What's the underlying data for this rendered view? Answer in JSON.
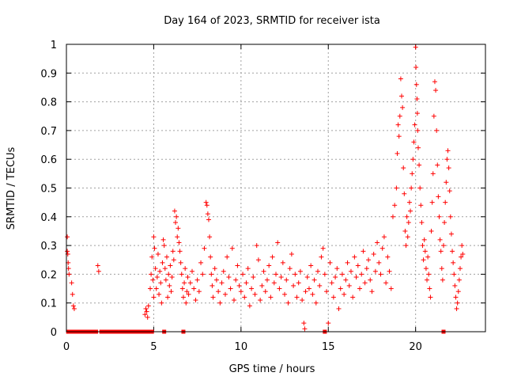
{
  "chart_data": {
    "type": "scatter",
    "title": "Day 164 of 2023, SRMTID for receiver ista",
    "xlabel": "GPS time / hours",
    "ylabel": "SRMTID / TECUs",
    "xlim": [
      0,
      24
    ],
    "ylim": [
      0,
      1
    ],
    "xticks": [
      0,
      5,
      10,
      15,
      20
    ],
    "yticks": [
      0,
      0.1,
      0.2,
      0.3,
      0.4,
      0.5,
      0.6,
      0.7,
      0.8,
      0.9,
      1
    ],
    "xtick_labels": [
      "0",
      "5",
      "10",
      "15",
      "20"
    ],
    "ytick_labels": [
      "0",
      "0.1",
      "0.2",
      "0.3",
      "0.4",
      "0.5",
      "0.6",
      "0.7",
      "0.8",
      "0.9",
      "1"
    ],
    "grid": true,
    "marker": "+",
    "color": "#ff0000",
    "zero_marker": "square",
    "series": [
      {
        "name": "SRMTID",
        "points": [
          [
            0.05,
            0.33
          ],
          [
            0.05,
            0.28
          ],
          [
            0.08,
            0.27
          ],
          [
            0.1,
            0.24
          ],
          [
            0.12,
            0.22
          ],
          [
            0.15,
            0.2
          ],
          [
            0.3,
            0.17
          ],
          [
            0.35,
            0.13
          ],
          [
            0.4,
            0.09
          ],
          [
            0.45,
            0.08
          ],
          [
            1.8,
            0.23
          ],
          [
            1.85,
            0.21
          ],
          [
            4.5,
            0.06
          ],
          [
            4.55,
            0.08
          ],
          [
            4.6,
            0.07
          ],
          [
            4.65,
            0.05
          ],
          [
            4.7,
            0.09
          ],
          [
            4.8,
            0.15
          ],
          [
            4.85,
            0.2
          ],
          [
            4.9,
            0.26
          ],
          [
            4.95,
            0.18
          ],
          [
            5.0,
            0.33
          ],
          [
            5.0,
            0.12
          ],
          [
            5.05,
            0.29
          ],
          [
            5.1,
            0.22
          ],
          [
            5.15,
            0.15
          ],
          [
            5.2,
            0.19
          ],
          [
            5.25,
            0.27
          ],
          [
            5.3,
            0.13
          ],
          [
            5.35,
            0.21
          ],
          [
            5.4,
            0.17
          ],
          [
            5.45,
            0.1
          ],
          [
            5.5,
            0.24
          ],
          [
            5.55,
            0.32
          ],
          [
            5.6,
            0.3
          ],
          [
            5.65,
            0.22
          ],
          [
            5.7,
            0.18
          ],
          [
            5.75,
            0.26
          ],
          [
            5.8,
            0.12
          ],
          [
            5.85,
            0.2
          ],
          [
            5.9,
            0.16
          ],
          [
            5.95,
            0.23
          ],
          [
            6.0,
            0.14
          ],
          [
            6.05,
            0.19
          ],
          [
            6.1,
            0.28
          ],
          [
            6.15,
            0.25
          ],
          [
            6.2,
            0.42
          ],
          [
            6.25,
            0.38
          ],
          [
            6.3,
            0.4
          ],
          [
            6.35,
            0.33
          ],
          [
            6.4,
            0.36
          ],
          [
            6.45,
            0.31
          ],
          [
            6.5,
            0.28
          ],
          [
            6.55,
            0.24
          ],
          [
            6.6,
            0.2
          ],
          [
            6.65,
            0.15
          ],
          [
            6.7,
            0.12
          ],
          [
            6.75,
            0.17
          ],
          [
            6.8,
            0.22
          ],
          [
            6.85,
            0.1
          ],
          [
            6.9,
            0.14
          ],
          [
            6.95,
            0.19
          ],
          [
            7.0,
            0.13
          ],
          [
            7.1,
            0.17
          ],
          [
            7.2,
            0.21
          ],
          [
            7.3,
            0.15
          ],
          [
            7.4,
            0.11
          ],
          [
            7.5,
            0.18
          ],
          [
            7.6,
            0.14
          ],
          [
            7.7,
            0.24
          ],
          [
            7.8,
            0.2
          ],
          [
            7.9,
            0.29
          ],
          [
            8.0,
            0.45
          ],
          [
            8.05,
            0.44
          ],
          [
            8.1,
            0.41
          ],
          [
            8.15,
            0.39
          ],
          [
            8.2,
            0.33
          ],
          [
            8.25,
            0.26
          ],
          [
            8.3,
            0.2
          ],
          [
            8.35,
            0.16
          ],
          [
            8.4,
            0.12
          ],
          [
            8.5,
            0.22
          ],
          [
            8.6,
            0.18
          ],
          [
            8.7,
            0.14
          ],
          [
            8.8,
            0.1
          ],
          [
            8.9,
            0.17
          ],
          [
            9.0,
            0.21
          ],
          [
            9.1,
            0.13
          ],
          [
            9.2,
            0.26
          ],
          [
            9.3,
            0.19
          ],
          [
            9.4,
            0.15
          ],
          [
            9.5,
            0.29
          ],
          [
            9.6,
            0.11
          ],
          [
            9.7,
            0.18
          ],
          [
            9.8,
            0.23
          ],
          [
            9.9,
            0.16
          ],
          [
            10.0,
            0.14
          ],
          [
            10.1,
            0.2
          ],
          [
            10.2,
            0.12
          ],
          [
            10.3,
            0.17
          ],
          [
            10.4,
            0.22
          ],
          [
            10.5,
            0.09
          ],
          [
            10.6,
            0.15
          ],
          [
            10.7,
            0.19
          ],
          [
            10.8,
            0.13
          ],
          [
            10.9,
            0.3
          ],
          [
            11.0,
            0.25
          ],
          [
            11.1,
            0.11
          ],
          [
            11.2,
            0.16
          ],
          [
            11.3,
            0.21
          ],
          [
            11.4,
            0.14
          ],
          [
            11.5,
            0.18
          ],
          [
            11.6,
            0.23
          ],
          [
            11.7,
            0.12
          ],
          [
            11.8,
            0.26
          ],
          [
            11.9,
            0.17
          ],
          [
            12.0,
            0.2
          ],
          [
            12.1,
            0.31
          ],
          [
            12.2,
            0.15
          ],
          [
            12.3,
            0.19
          ],
          [
            12.4,
            0.24
          ],
          [
            12.5,
            0.13
          ],
          [
            12.6,
            0.18
          ],
          [
            12.7,
            0.1
          ],
          [
            12.8,
            0.22
          ],
          [
            12.9,
            0.27
          ],
          [
            13.0,
            0.16
          ],
          [
            13.1,
            0.2
          ],
          [
            13.2,
            0.12
          ],
          [
            13.3,
            0.17
          ],
          [
            13.4,
            0.21
          ],
          [
            13.5,
            0.11
          ],
          [
            13.6,
            0.03
          ],
          [
            13.65,
            0.01
          ],
          [
            13.7,
            0.14
          ],
          [
            13.8,
            0.19
          ],
          [
            13.9,
            0.15
          ],
          [
            14.0,
            0.23
          ],
          [
            14.1,
            0.13
          ],
          [
            14.2,
            0.18
          ],
          [
            14.3,
            0.1
          ],
          [
            14.4,
            0.21
          ],
          [
            14.5,
            0.16
          ],
          [
            14.6,
            0.26
          ],
          [
            14.7,
            0.29
          ],
          [
            14.8,
            0.2
          ],
          [
            14.9,
            0.14
          ],
          [
            15.0,
            0.03
          ],
          [
            15.1,
            0.24
          ],
          [
            15.2,
            0.17
          ],
          [
            15.3,
            0.12
          ],
          [
            15.4,
            0.19
          ],
          [
            15.5,
            0.22
          ],
          [
            15.6,
            0.08
          ],
          [
            15.7,
            0.15
          ],
          [
            15.8,
            0.2
          ],
          [
            15.9,
            0.13
          ],
          [
            16.0,
            0.18
          ],
          [
            16.1,
            0.24
          ],
          [
            16.2,
            0.16
          ],
          [
            16.3,
            0.21
          ],
          [
            16.4,
            0.12
          ],
          [
            16.5,
            0.26
          ],
          [
            16.6,
            0.19
          ],
          [
            16.7,
            0.23
          ],
          [
            16.8,
            0.15
          ],
          [
            16.9,
            0.2
          ],
          [
            17.0,
            0.28
          ],
          [
            17.1,
            0.17
          ],
          [
            17.2,
            0.22
          ],
          [
            17.3,
            0.25
          ],
          [
            17.4,
            0.18
          ],
          [
            17.5,
            0.14
          ],
          [
            17.6,
            0.27
          ],
          [
            17.7,
            0.21
          ],
          [
            17.8,
            0.31
          ],
          [
            17.9,
            0.24
          ],
          [
            18.0,
            0.2
          ],
          [
            18.1,
            0.29
          ],
          [
            18.2,
            0.33
          ],
          [
            18.3,
            0.17
          ],
          [
            18.4,
            0.26
          ],
          [
            18.5,
            0.21
          ],
          [
            18.6,
            0.15
          ],
          [
            18.7,
            0.4
          ],
          [
            18.8,
            0.44
          ],
          [
            18.9,
            0.5
          ],
          [
            18.95,
            0.62
          ],
          [
            19.0,
            0.72
          ],
          [
            19.05,
            0.68
          ],
          [
            19.1,
            0.75
          ],
          [
            19.15,
            0.88
          ],
          [
            19.2,
            0.82
          ],
          [
            19.25,
            0.78
          ],
          [
            19.3,
            0.57
          ],
          [
            19.35,
            0.48
          ],
          [
            19.4,
            0.35
          ],
          [
            19.45,
            0.3
          ],
          [
            19.5,
            0.4
          ],
          [
            19.55,
            0.33
          ],
          [
            19.6,
            0.38
          ],
          [
            19.65,
            0.45
          ],
          [
            19.7,
            0.42
          ],
          [
            19.75,
            0.5
          ],
          [
            19.8,
            0.55
          ],
          [
            19.85,
            0.6
          ],
          [
            19.9,
            0.66
          ],
          [
            19.95,
            0.72
          ],
          [
            20.0,
            0.99
          ],
          [
            20.02,
            0.92
          ],
          [
            20.05,
            0.86
          ],
          [
            20.08,
            0.81
          ],
          [
            20.1,
            0.76
          ],
          [
            20.12,
            0.7
          ],
          [
            20.15,
            0.64
          ],
          [
            20.2,
            0.58
          ],
          [
            20.25,
            0.5
          ],
          [
            20.3,
            0.44
          ],
          [
            20.35,
            0.38
          ],
          [
            20.4,
            0.3
          ],
          [
            20.45,
            0.25
          ],
          [
            20.5,
            0.32
          ],
          [
            20.55,
            0.28
          ],
          [
            20.6,
            0.22
          ],
          [
            20.65,
            0.18
          ],
          [
            20.7,
            0.26
          ],
          [
            20.75,
            0.2
          ],
          [
            20.8,
            0.15
          ],
          [
            20.85,
            0.12
          ],
          [
            20.9,
            0.35
          ],
          [
            20.95,
            0.45
          ],
          [
            21.0,
            0.55
          ],
          [
            21.05,
            0.75
          ],
          [
            21.1,
            0.87
          ],
          [
            21.15,
            0.84
          ],
          [
            21.2,
            0.7
          ],
          [
            21.25,
            0.58
          ],
          [
            21.3,
            0.47
          ],
          [
            21.35,
            0.4
          ],
          [
            21.4,
            0.32
          ],
          [
            21.45,
            0.28
          ],
          [
            21.5,
            0.22
          ],
          [
            21.55,
            0.18
          ],
          [
            21.6,
            0.3
          ],
          [
            21.65,
            0.38
          ],
          [
            21.7,
            0.45
          ],
          [
            21.75,
            0.52
          ],
          [
            21.8,
            0.6
          ],
          [
            21.85,
            0.63
          ],
          [
            21.9,
            0.57
          ],
          [
            21.95,
            0.49
          ],
          [
            22.0,
            0.4
          ],
          [
            22.05,
            0.34
          ],
          [
            22.1,
            0.28
          ],
          [
            22.15,
            0.24
          ],
          [
            22.2,
            0.2
          ],
          [
            22.25,
            0.16
          ],
          [
            22.3,
            0.12
          ],
          [
            22.35,
            0.08
          ],
          [
            22.4,
            0.1
          ],
          [
            22.45,
            0.14
          ],
          [
            22.5,
            0.18
          ],
          [
            22.55,
            0.22
          ],
          [
            22.6,
            0.26
          ],
          [
            22.65,
            0.3
          ],
          [
            22.7,
            0.27
          ]
        ]
      }
    ],
    "zero_points": [
      0.1,
      0.2,
      0.3,
      0.4,
      0.5,
      0.6,
      0.7,
      0.8,
      0.9,
      1.0,
      1.1,
      1.2,
      1.3,
      1.4,
      1.5,
      1.6,
      1.7,
      2.0,
      2.1,
      2.2,
      2.3,
      2.4,
      2.5,
      2.6,
      2.7,
      2.8,
      2.9,
      3.0,
      3.1,
      3.2,
      3.3,
      3.4,
      3.5,
      3.6,
      3.7,
      3.8,
      3.9,
      4.0,
      4.1,
      4.2,
      4.3,
      4.4,
      4.6,
      4.8,
      4.9,
      5.6,
      6.7,
      14.8,
      21.6
    ]
  }
}
